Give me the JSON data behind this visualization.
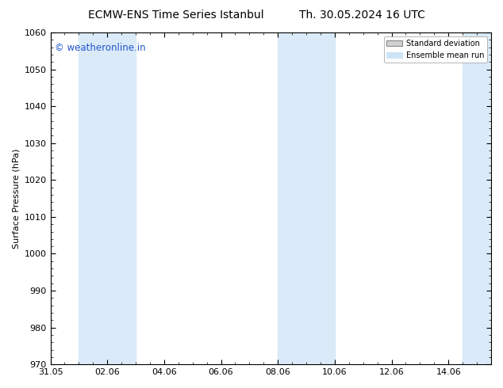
{
  "title_left": "ECMW-ENS Time Series Istanbul",
  "title_right": "Th. 30.05.2024 16 UTC",
  "ylabel": "Surface Pressure (hPa)",
  "ylim": [
    970,
    1060
  ],
  "yticks": [
    970,
    980,
    990,
    1000,
    1010,
    1020,
    1030,
    1040,
    1050,
    1060
  ],
  "xtick_labels": [
    "31.05",
    "02.06",
    "04.06",
    "06.06",
    "08.06",
    "10.06",
    "12.06",
    "14.06"
  ],
  "xtick_days": [
    0,
    2,
    4,
    6,
    8,
    10,
    12,
    14
  ],
  "xlim": [
    0,
    15.5
  ],
  "watermark": "© weatheronline.in",
  "watermark_color": "#2255cc",
  "shaded_bands": [
    {
      "x_start": 1.0,
      "x_end": 3.0
    },
    {
      "x_start": 8.0,
      "x_end": 10.0
    },
    {
      "x_start": 14.5,
      "x_end": 15.5
    }
  ],
  "shade_color": "#daeaf8",
  "legend_std_label": "Standard deviation",
  "legend_ens_label": "Ensemble mean run",
  "legend_std_facecolor": "#d0d0d0",
  "legend_std_edgecolor": "#888888",
  "legend_ens_color": "#dd2200",
  "legend_ens_facecolor": "#cce4f7",
  "bg_color": "#ffffff",
  "spine_color": "#000000",
  "tick_color": "#000000",
  "title_fontsize": 10,
  "axis_fontsize": 8,
  "watermark_fontsize": 8.5
}
